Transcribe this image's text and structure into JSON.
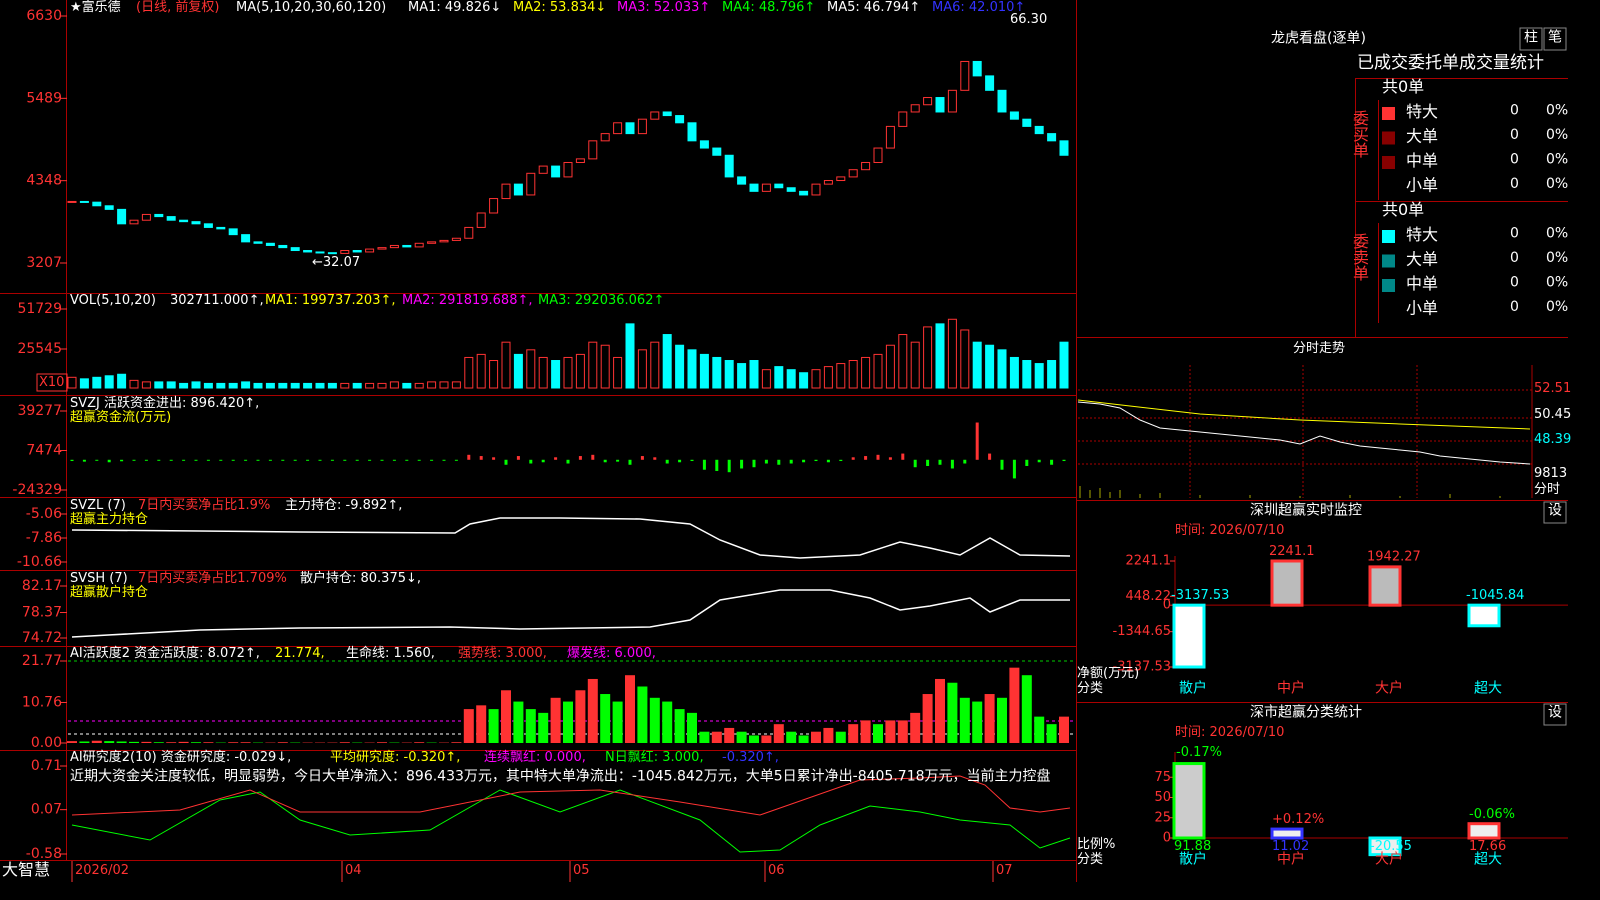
{
  "header": {
    "stock": "★富乐德",
    "mode": "(日线, 前复权)",
    "ma_label": "MA(5,10,20,30,60,120)",
    "ma": [
      "MA1: 49.826↓",
      "MA2: 53.834↓",
      "MA3: 52.033↑",
      "MA4: 48.796↑",
      "MA5: 46.794↑",
      "MA6: 42.010↑"
    ]
  },
  "price_pane": {
    "high_label": "66.30",
    "low_label": "←32.07",
    "ylim": [
      3207,
      6630
    ],
    "yticks": [
      6630,
      5489,
      4348,
      3207
    ],
    "closes": [
      4060,
      4050,
      4000,
      3950,
      3750,
      3800,
      3880,
      3850,
      3800,
      3780,
      3750,
      3700,
      3680,
      3600,
      3500,
      3480,
      3450,
      3420,
      3380,
      3360,
      3350,
      3340,
      3380,
      3360,
      3400,
      3420,
      3450,
      3430,
      3480,
      3500,
      3520,
      3550,
      3700,
      3900,
      4100,
      4300,
      4150,
      4450,
      4550,
      4400,
      4600,
      4650,
      4900,
      5000,
      5150,
      5000,
      5200,
      5300,
      5250,
      5150,
      4900,
      4800,
      4700,
      4400,
      4300,
      4200,
      4300,
      4250,
      4200,
      4150,
      4300,
      4350,
      4400,
      4500,
      4600,
      4800,
      5100,
      5300,
      5400,
      5500,
      5300,
      5600,
      6000,
      5800,
      5600,
      5300,
      5200,
      5100,
      5000,
      4900,
      4700
    ]
  },
  "volume": {
    "label": "VOL(5,10,20)",
    "parts": [
      "302711.000↑,",
      "MA1: 199737.203↑,",
      "MA2: 291819.688↑,",
      "MA3: 292036.062↑"
    ],
    "factor": "X10",
    "ylim": [
      0,
      51729
    ],
    "yticks": [
      51729,
      25545
    ],
    "values": [
      7000,
      6000,
      7000,
      8000,
      9000,
      5000,
      4000,
      4000,
      4000,
      3000,
      4000,
      3000,
      3000,
      3000,
      4000,
      3000,
      3000,
      3000,
      3000,
      3000,
      3000,
      3000,
      3000,
      3000,
      3000,
      3000,
      4000,
      3000,
      3000,
      4000,
      4000,
      4000,
      20000,
      22000,
      18000,
      30000,
      22000,
      25000,
      20000,
      18000,
      20000,
      22000,
      30000,
      28000,
      20000,
      42000,
      25000,
      30000,
      35000,
      28000,
      25000,
      22000,
      20000,
      18000,
      16000,
      18000,
      12000,
      14000,
      12000,
      10000,
      12000,
      14000,
      16000,
      18000,
      20000,
      22000,
      28000,
      35000,
      30000,
      40000,
      42000,
      45000,
      38000,
      30000,
      28000,
      25000,
      20000,
      18000,
      16000,
      18000,
      30000
    ]
  },
  "svzj": {
    "label": "SVZJ  活跃资金进出: 896.420↑,",
    "sublabel": "超赢资金流(万元)",
    "ylim": [
      -24329,
      39277
    ],
    "yticks": [
      39277,
      7474,
      -24329
    ],
    "values": [
      -1000,
      -1500,
      -800,
      -2000,
      -1200,
      -500,
      -800,
      -600,
      -400,
      -300,
      -500,
      -300,
      -200,
      -400,
      -300,
      -200,
      -100,
      -200,
      -300,
      -200,
      -300,
      -200,
      -100,
      -200,
      -300,
      -200,
      -100,
      -200,
      -100,
      -300,
      -200,
      -400,
      4000,
      3000,
      2000,
      -4000,
      3000,
      -3000,
      -2000,
      2000,
      -3000,
      3000,
      4000,
      -2000,
      -1500,
      -4000,
      3000,
      2000,
      -3000,
      -2000,
      -1000,
      -8000,
      -9000,
      -10000,
      -7000,
      -6000,
      -3000,
      -4000,
      -3000,
      -2000,
      -1000,
      -2000,
      -1000,
      2000,
      3000,
      4000,
      2000,
      5000,
      -6000,
      -5000,
      -4000,
      -7000,
      -3000,
      30000,
      5000,
      -8000,
      -15000,
      -5000,
      -2000,
      -4000,
      -1000
    ]
  },
  "svzl": {
    "name": "SVZL (7)",
    "desc": "7日内买卖净占比1.9%",
    "value": "主力持仓: -9.892↑,",
    "sublabel": "超赢主力持仓",
    "ylim": [
      -10.66,
      -5.06
    ],
    "yticks": [
      -5.06,
      -7.86,
      -10.66
    ]
  },
  "svsh": {
    "name": "SVSH (7)",
    "desc": "7日内买卖净占比1.709%",
    "value": "散户持仓: 80.375↓,",
    "sublabel": "超赢散户持仓",
    "ylim": [
      74.72,
      82.17
    ],
    "yticks": [
      82.17,
      78.37,
      74.72
    ]
  },
  "ai_activity": {
    "parts": [
      "AI活跃度2 资金活跃度: 8.072↑,",
      "21.774,",
      "生命线: 1.560,",
      "强势线: 3.000,",
      "爆发线: 6.000,"
    ],
    "ylim": [
      0,
      21.77
    ],
    "yticks": [
      21.77,
      10.76,
      {
        "value": 0,
        "label": "0.00"
      }
    ],
    "values": [
      0.5,
      0.4,
      0.6,
      0.5,
      0.4,
      0.3,
      0.3,
      0.2,
      0.2,
      0.3,
      0.2,
      0.2,
      0.1,
      0.2,
      0.2,
      0.1,
      0.1,
      0.2,
      0.1,
      0.1,
      0.1,
      0.1,
      0.2,
      0.1,
      0.1,
      0.2,
      0.1,
      0.1,
      0.2,
      0.1,
      0.1,
      0.2,
      9,
      10,
      9,
      14,
      11,
      9,
      8,
      12,
      11,
      14,
      17,
      13,
      11,
      18,
      15,
      12,
      11,
      9,
      8,
      3,
      3,
      4,
      3,
      2,
      2,
      5,
      3,
      2,
      3,
      4,
      3,
      5,
      6,
      5,
      6,
      6,
      8,
      13,
      17,
      16,
      12,
      11,
      13,
      12,
      20,
      18,
      7,
      5,
      7
    ]
  },
  "ai_research": {
    "parts": [
      "AI研究度2(10) 资金研究度: -0.029↓,",
      "平均研究度: -0.320↑,",
      "连续飘红: 0.000,",
      "N日飘红: 3.000,",
      "-0.320↑,"
    ],
    "comment": "近期大资金关注度较低，明显弱势，今日大单净流入：896.433万元，其中特大单净流出：-1045.842万元，大单5日累计净出-8405.718万元，当前主力控盘",
    "ylim": [
      -0.58,
      0.71
    ],
    "yticks": [
      0.71,
      0.07,
      -0.58
    ]
  },
  "footer": {
    "brand": "大智慧",
    "dates": [
      "2026/02",
      "04",
      "05",
      "06",
      "07"
    ]
  },
  "lhb": {
    "title": "龙虎看盘(逐单)",
    "buttons": [
      "柱",
      "笔"
    ],
    "subtitle": "已成交委托单成交量统计",
    "buy": {
      "total": "共0单",
      "label": "委买单",
      "rows": [
        [
          "特大",
          0,
          "0%"
        ],
        [
          "大单",
          0,
          "0%"
        ],
        [
          "中单",
          0,
          "0%"
        ],
        [
          "小单",
          0,
          "0%"
        ]
      ]
    },
    "sell": {
      "total": "共0单",
      "label": "委卖单",
      "rows": [
        [
          "特大",
          0,
          "0%"
        ],
        [
          "大单",
          0,
          "0%"
        ],
        [
          "中单",
          0,
          "0%"
        ],
        [
          "小单",
          0,
          "0%"
        ]
      ]
    }
  },
  "fenshi": {
    "title": "分时走势",
    "labels": [
      "52.51",
      "50.45",
      "48.39",
      "9813"
    ],
    "unit": "分时"
  },
  "monitor": {
    "title": "深圳超赢实时监控",
    "button": "设",
    "time": "时间: 2026/07/10",
    "categories": [
      "散户",
      "中户",
      "大户",
      "超大"
    ],
    "values": [
      -3137.53,
      2241.1,
      1942.27,
      -1045.84
    ],
    "ylim": [
      -3137.53,
      2241.1
    ],
    "yticks": [
      2241.1,
      448.22,
      0,
      -1344.65,
      -3137.53
    ],
    "axis_label": "净额(万元)",
    "cat_label": "分类"
  },
  "classification": {
    "title": "深市超赢分类统计",
    "button": "设",
    "time": "时间: 2026/07/10",
    "categories": [
      "散户",
      "中户",
      "大户",
      "超大"
    ],
    "values": [
      91.88,
      11.02,
      -20.55,
      17.66
    ],
    "change_labels": [
      "-0.17%",
      "+0.12%",
      "-0.06%"
    ],
    "ylim": [
      0,
      100
    ],
    "yticks": [
      75,
      50,
      25,
      0
    ],
    "axis_label": "比例%",
    "cat_label": "分类"
  }
}
